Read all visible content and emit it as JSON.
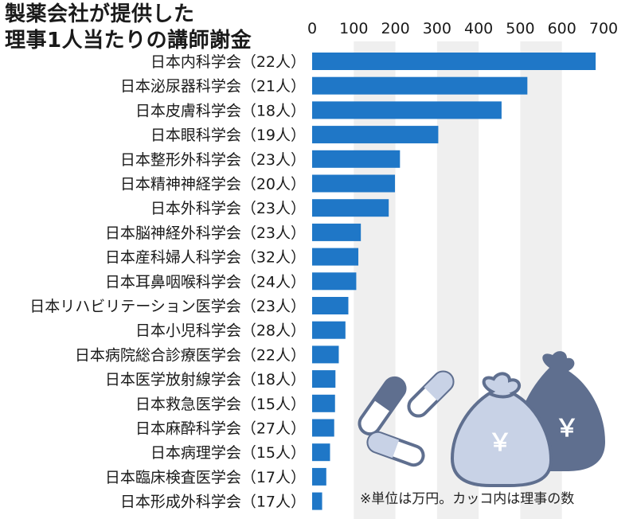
{
  "title_lines": [
    "製薬会社が提供した",
    "理事1人当たりの講師謝金"
  ],
  "note": "※単位は万円。カッコ内は理事の数",
  "colors": {
    "bar": "#1f77c7",
    "band": "#efefef",
    "illustration_dark": "#5f6f8f",
    "illustration_light": "#c8d2e6"
  },
  "chart_data": {
    "type": "bar",
    "orientation": "horizontal",
    "title": "製薬会社が提供した理事1人当たりの講師謝金",
    "xlim": [
      0,
      700
    ],
    "x_ticks": [
      "0",
      "100",
      "200",
      "300",
      "400",
      "500",
      "600",
      "700"
    ],
    "grid": "alternating vertical bands",
    "categories": [
      "日本内科学会（22人）",
      "日本泌尿器科学会（21人）",
      "日本皮膚科学会（18人）",
      "日本眼科学会（19人）",
      "日本整形外科学会（23人）",
      "日本精神神経学会（20人）",
      "日本外科学会（23人）",
      "日本脳神経外科学会（23人）",
      "日本産科婦人科学会（32人）",
      "日本耳鼻咽喉科学会（24人）",
      "日本リハビリテーション医学会（23人）",
      "日本小児科学会（28人）",
      "日本病院総合診療医学会（22人）",
      "日本医学放射線学会（18人）",
      "日本救急医学会（15人）",
      "日本麻酔科学会（27人）",
      "日本病理学会（15人）",
      "日本臨床検査医学会（17人）",
      "日本形成外科学会（17人）"
    ],
    "values": [
      681,
      517,
      455,
      303,
      211,
      199,
      184,
      117,
      111,
      106,
      87,
      80,
      64,
      56,
      55,
      53,
      43,
      34,
      24
    ]
  },
  "illustration": {
    "icons": [
      "capsule-icon",
      "capsule-icon",
      "capsule-icon",
      "money-bag-icon",
      "money-bag-icon"
    ],
    "bag_symbol": "￥"
  }
}
